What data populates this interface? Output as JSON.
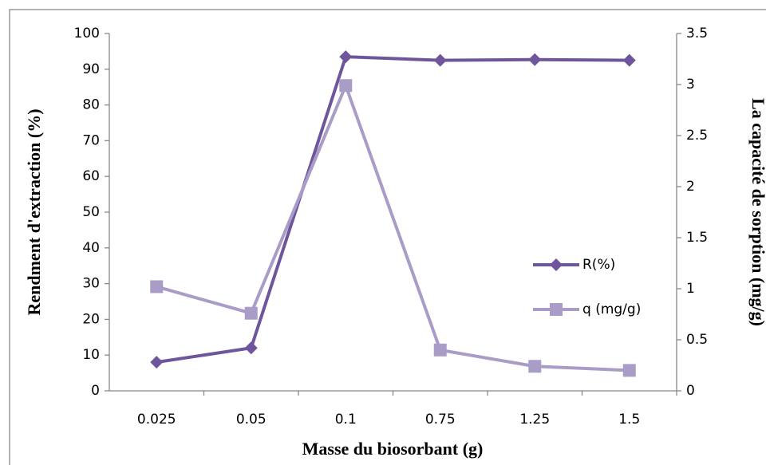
{
  "chart_data": {
    "type": "line",
    "x_label": "Masse du biosorbant (g)",
    "y_label": "Rendment d'extraction (%)",
    "y2_label": "La capacité de sorption (mg/g)",
    "categories": [
      "0.025",
      "0.05",
      "0.1",
      "0.75",
      "1.25",
      "1.5"
    ],
    "series": [
      {
        "name": "R(%)",
        "color": "#6f559c",
        "marker": "diamond",
        "values": [
          8,
          12,
          93.5,
          92.5,
          92.7,
          92.5
        ]
      },
      {
        "name": "q (mg/g)",
        "color": "#a99dc8",
        "marker": "square",
        "axis": "y2",
        "values": [
          1.02,
          0.76,
          2.99,
          0.4,
          0.24,
          0.2
        ]
      }
    ],
    "ylim": [
      0,
      100
    ],
    "yticks": [
      0,
      10,
      20,
      30,
      40,
      50,
      60,
      70,
      80,
      90,
      100
    ],
    "y2lim": [
      0,
      3.5
    ],
    "y2ticks": [
      0,
      0.5,
      1,
      1.5,
      2,
      2.5,
      3,
      3.5
    ]
  }
}
